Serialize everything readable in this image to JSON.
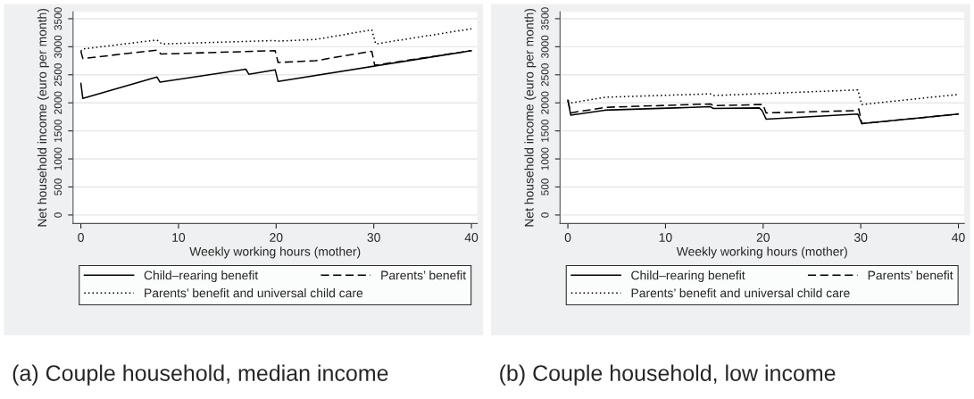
{
  "chart_data": [
    {
      "type": "line",
      "title": "(a) Couple household, median income",
      "xlabel": "Weekly working hours (mother)",
      "ylabel": "Net household income (euro per month)",
      "xlim": [
        -0.8,
        40.6
      ],
      "xticks": [
        0,
        10,
        20,
        30,
        40
      ],
      "ylim": [
        -150,
        3620
      ],
      "yticks": [
        0,
        500,
        1000,
        1500,
        2000,
        2500,
        3000,
        3500
      ],
      "grid": "y",
      "legend": "bottom",
      "series": [
        {
          "name": "Child‒rearing benefit",
          "color": "#000000",
          "line_style": "solid",
          "x": [
            0,
            0.2,
            7.8,
            8.1,
            16.9,
            17.2,
            19.9,
            20.2,
            40
          ],
          "values": [
            2350,
            2080,
            2460,
            2370,
            2600,
            2510,
            2590,
            2380,
            2930
          ]
        },
        {
          "name": "Parents’ benefit",
          "color": "#000000",
          "line_style": "dashed",
          "x": [
            0,
            0.2,
            7.8,
            8.2,
            19.9,
            20.2,
            24,
            29.8,
            30.1,
            40
          ],
          "values": [
            2920,
            2790,
            2940,
            2870,
            2930,
            2720,
            2750,
            2920,
            2670,
            2930
          ]
        },
        {
          "name": "Parents’ benefit and universal child care",
          "color": "#000000",
          "line_style": "dotted",
          "x": [
            0,
            0.2,
            7.8,
            8.3,
            19.8,
            20.2,
            24,
            29.8,
            30.2,
            40
          ],
          "values": [
            2920,
            2960,
            3120,
            3050,
            3110,
            3100,
            3130,
            3300,
            3050,
            3320
          ]
        }
      ]
    },
    {
      "type": "line",
      "title": "(b) Couple household, low income",
      "xlabel": "Weekly working hours (mother)",
      "ylabel": "Net household income (euro per month)",
      "xlim": [
        -0.8,
        40.6
      ],
      "xticks": [
        0,
        10,
        20,
        30,
        40
      ],
      "ylim": [
        -150,
        3620
      ],
      "yticks": [
        0,
        500,
        1000,
        1500,
        2000,
        2500,
        3000,
        3500
      ],
      "grid": "y",
      "legend": "bottom",
      "series": [
        {
          "name": "Child‒rearing benefit",
          "color": "#000000",
          "line_style": "solid",
          "x": [
            0,
            0.3,
            3.8,
            14.6,
            14.9,
            19.6,
            19.9,
            20.3,
            29.7,
            30.1,
            40
          ],
          "values": [
            2050,
            1780,
            1870,
            1930,
            1900,
            1910,
            1860,
            1710,
            1800,
            1630,
            1800
          ]
        },
        {
          "name": "Parents’ benefit",
          "color": "#000000",
          "line_style": "dashed",
          "x": [
            0,
            0.3,
            3.8,
            14.6,
            14.9,
            20,
            20.3,
            29.3,
            29.8,
            30.1,
            40
          ],
          "values": [
            2040,
            1820,
            1920,
            1980,
            1950,
            1970,
            1820,
            1860,
            1890,
            1630,
            1800
          ]
        },
        {
          "name": "Parents’ benefit and universal child care",
          "color": "#000000",
          "line_style": "dotted",
          "x": [
            0,
            0.3,
            3.8,
            14.6,
            14.9,
            29.7,
            30.1,
            40
          ],
          "values": [
            2040,
            2000,
            2100,
            2160,
            2130,
            2230,
            1970,
            2150
          ]
        }
      ]
    }
  ]
}
